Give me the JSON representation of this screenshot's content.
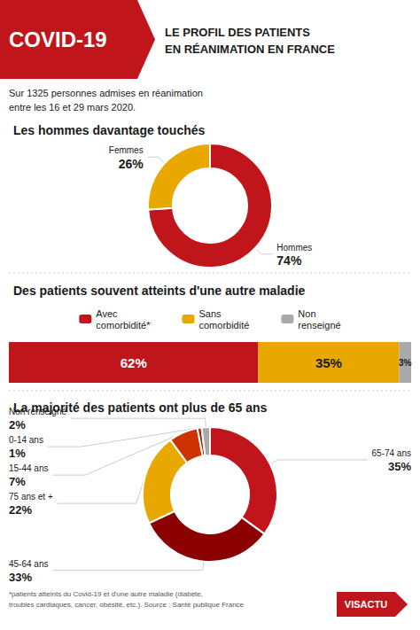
{
  "title": "COVID-19",
  "subtitle": "Sur 1325 personnes admises en réanimation\nentre les 16 et 29 mars 2020.",
  "annotations": [
    "LE PROFIL DES PATIENTS\nEN RÉANIMATION EN FRANCE",
    "*patients atteints du Covid-19 et d'une autre maladie (diabète,\ntroubles cardiaques, cancer, obésité, etc.). Source : Santé publique France",
    "VISACTU"
  ],
  "chart_data": [
    {
      "type": "pie",
      "title": "Les hommes davantage touchés",
      "categories": [
        "Hommes",
        "Femmes"
      ],
      "values": [
        74,
        26
      ],
      "value_labels": [
        "74%",
        "26%"
      ],
      "colors": [
        "#C0151A",
        "#E8A800"
      ],
      "data_labels": true
    },
    {
      "type": "bar",
      "title": "Des patients souvent atteints d'une autre maladie",
      "orientation": "horizontal",
      "stacked": true,
      "categories": [
        null
      ],
      "series": [
        {
          "name": "Avec\ncomorbidité*",
          "color": "#C0151A",
          "values": [
            62
          ],
          "value_labels": [
            "62%"
          ]
        },
        {
          "name": "Sans\ncomorbidité",
          "color": "#E8A800",
          "values": [
            35
          ],
          "value_labels": [
            "35%"
          ]
        },
        {
          "name": "Non\nrenseigné",
          "color": "#AAAAAA",
          "values": [
            3
          ],
          "value_labels": [
            "3%"
          ]
        }
      ],
      "xlim": [
        0,
        100
      ],
      "data_labels": true,
      "tick_labels": false,
      "grid": false,
      "legend": "top"
    },
    {
      "type": "pie",
      "title": "La majorité des patients ont plus de 65 ans",
      "categories": [
        "65-74 ans",
        "45-64 ans",
        "75 ans et +",
        "15-44 ans",
        "0-14 ans",
        "Non renseigné"
      ],
      "values": [
        35,
        33,
        22,
        7,
        1,
        2
      ],
      "value_labels": [
        "35%",
        "33%",
        "22%",
        "7%",
        "1%",
        "2%"
      ],
      "colors": [
        "#C0151A",
        "#8B0000",
        "#E8A800",
        "#CC3300",
        "#AA2200",
        "#AAAAAA"
      ],
      "data_labels": true
    }
  ]
}
